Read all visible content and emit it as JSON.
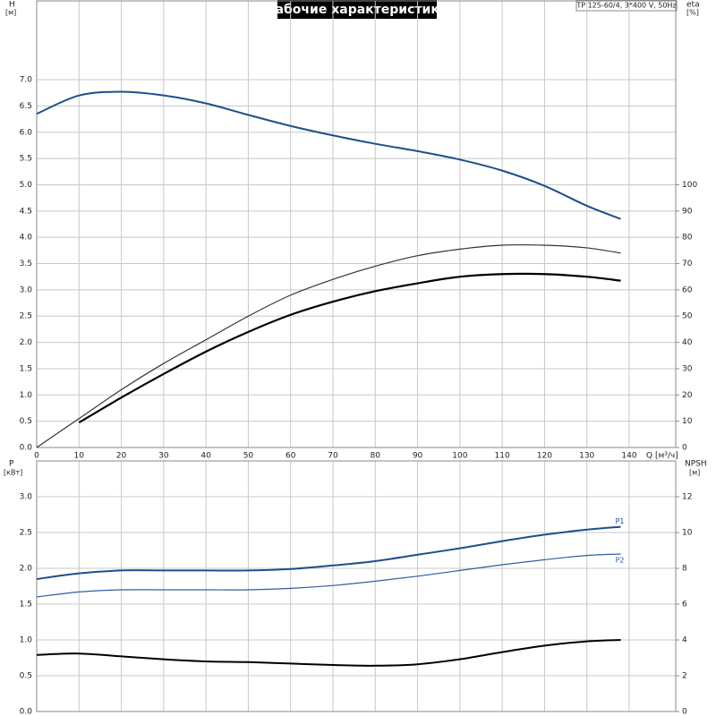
{
  "chart_data": [
    {
      "type": "line",
      "title": "Рабочие характеристики",
      "subtitle": "TP 125-60/4, 3*400 V, 50Hz",
      "ylabel": "H",
      "ylabel_unit": "[м]",
      "y2label": "eta",
      "y2label_unit": "[%]",
      "xlabel": "Q [м³/ч]",
      "x": [
        0,
        10,
        20,
        30,
        40,
        50,
        60,
        70,
        80,
        90,
        100,
        110,
        120,
        130,
        138
      ],
      "xlim": [
        0,
        151
      ],
      "xticks": [
        0,
        10,
        20,
        30,
        40,
        50,
        60,
        70,
        80,
        90,
        100,
        110,
        120,
        130,
        140
      ],
      "ylim": [
        0,
        8.5
      ],
      "yticks": [
        {
          "value": 0,
          "label": "0.0"
        },
        {
          "value": 0.5,
          "label": "0.5"
        },
        {
          "value": 1,
          "label": "1.0"
        },
        {
          "value": 1.5,
          "label": "1.5"
        },
        {
          "value": 2,
          "label": "2.0"
        },
        {
          "value": 2.5,
          "label": "2.5"
        },
        {
          "value": 3,
          "label": "3.0"
        },
        {
          "value": 3.5,
          "label": "3.5"
        },
        {
          "value": 4,
          "label": "4.0"
        },
        {
          "value": 4.5,
          "label": "4.5"
        },
        {
          "value": 5,
          "label": "5.0"
        },
        {
          "value": 5.5,
          "label": "5.5"
        },
        {
          "value": 6,
          "label": "6.0"
        },
        {
          "value": 6.5,
          "label": "6.5"
        },
        {
          "value": 7,
          "label": "7.0"
        }
      ],
      "y2lim": [
        0,
        170
      ],
      "y2ticks": [
        0,
        10,
        20,
        30,
        40,
        50,
        60,
        70,
        80,
        90,
        100
      ],
      "grid": true,
      "series": [
        {
          "color": "#1f4e8c",
          "width": 2,
          "values": [
            6.35,
            6.7,
            6.77,
            6.7,
            6.55,
            6.33,
            6.12,
            5.94,
            5.78,
            5.64,
            5.48,
            5.27,
            4.98,
            4.6,
            4.35
          ]
        },
        {
          "color": "#333333",
          "width": 1.2,
          "axis": "y2",
          "values": [
            0,
            11,
            22,
            32,
            41,
            50,
            58,
            64,
            69,
            73,
            75.5,
            77,
            77,
            76,
            74
          ]
        },
        {
          "color": "#000000",
          "width": 2.2,
          "axis": "y2",
          "values": [
            null,
            9.5,
            19,
            28,
            36.5,
            44,
            50.5,
            55.5,
            59.5,
            62.5,
            65,
            66,
            66,
            65,
            63.5
          ]
        }
      ]
    },
    {
      "type": "line",
      "ylabel": "P",
      "ylabel_unit": "[кВт]",
      "y2label": "NPSH",
      "y2label_unit": "[м]",
      "x": [
        0,
        10,
        20,
        30,
        40,
        50,
        60,
        70,
        80,
        90,
        100,
        110,
        120,
        130,
        138
      ],
      "xlim": [
        0,
        151
      ],
      "ylim": [
        0,
        3.5
      ],
      "yticks": [
        {
          "value": 0,
          "label": "0.0"
        },
        {
          "value": 0.5,
          "label": "0.5"
        },
        {
          "value": 1,
          "label": "1.0"
        },
        {
          "value": 1.5,
          "label": "1.5"
        },
        {
          "value": 2,
          "label": "2.0"
        },
        {
          "value": 2.5,
          "label": "2.5"
        },
        {
          "value": 3,
          "label": "3.0"
        }
      ],
      "y2lim": [
        0,
        14
      ],
      "y2ticks": [
        0,
        2,
        4,
        6,
        8,
        10,
        12
      ],
      "grid": true,
      "series": [
        {
          "name": "P1",
          "color": "#1f4e8c",
          "width": 2,
          "values": [
            1.85,
            1.93,
            1.97,
            1.97,
            1.97,
            1.97,
            1.99,
            2.04,
            2.1,
            2.19,
            2.28,
            2.38,
            2.47,
            2.54,
            2.58
          ]
        },
        {
          "name": "P2",
          "color": "#2e5f9e",
          "width": 1.2,
          "values": [
            1.6,
            1.67,
            1.7,
            1.7,
            1.7,
            1.7,
            1.72,
            1.76,
            1.82,
            1.89,
            1.97,
            2.05,
            2.12,
            2.18,
            2.2
          ]
        },
        {
          "color": "#000000",
          "width": 2,
          "axis": "y2",
          "values": [
            3.16,
            3.24,
            3.08,
            2.92,
            2.8,
            2.76,
            2.68,
            2.6,
            2.56,
            2.64,
            2.92,
            3.32,
            3.68,
            3.92,
            4.0
          ]
        }
      ]
    }
  ]
}
